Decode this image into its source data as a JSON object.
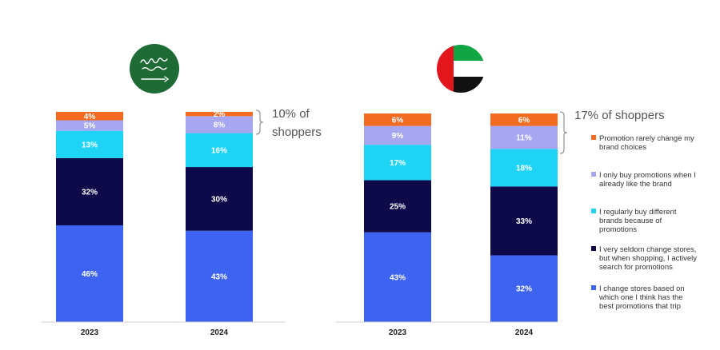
{
  "chart_data": [
    {
      "type": "bar",
      "stacked": true,
      "region": "Saudi Arabia",
      "flag": "saudi-flag",
      "categories": [
        "2023",
        "2024"
      ],
      "series": [
        {
          "name": "I change stores based on which one I think has the best promotions that trip",
          "color": "#3D63F0",
          "values": [
            46,
            43
          ],
          "labels": [
            "46%",
            "43%"
          ]
        },
        {
          "name": "I very seldom change stores, but when shopping, I actively search for promotions",
          "color": "#0E0A4A",
          "values": [
            32,
            30
          ],
          "labels": [
            "32%",
            "30%"
          ]
        },
        {
          "name": "I regularly buy different brands because of promotions",
          "color": "#1FD3F5",
          "values": [
            13,
            16
          ],
          "labels": [
            "13%",
            "16%"
          ]
        },
        {
          "name": "I only buy promotions when I already like the brand",
          "color": "#A6A7F0",
          "values": [
            5,
            8
          ],
          "labels": [
            "5%",
            "8%"
          ]
        },
        {
          "name": "Promotion rarely change my brand choices",
          "color": "#F26B21",
          "values": [
            4,
            2
          ],
          "labels": [
            "4%",
            "2%"
          ]
        }
      ],
      "annotation": [
        "10% of",
        "shoppers"
      ]
    },
    {
      "type": "bar",
      "stacked": true,
      "region": "UAE",
      "flag": "uae-flag",
      "categories": [
        "2023",
        "2024"
      ],
      "series": [
        {
          "name": "I change stores based on which one I think has the best promotions that trip",
          "color": "#3D63F0",
          "values": [
            43,
            32
          ],
          "labels": [
            "43%",
            "32%"
          ]
        },
        {
          "name": "I very seldom change stores, but when shopping, I actively search for promotions",
          "color": "#0E0A4A",
          "values": [
            25,
            33
          ],
          "labels": [
            "25%",
            "33%"
          ]
        },
        {
          "name": "I regularly buy different brands because of promotions",
          "color": "#1FD3F5",
          "values": [
            17,
            18
          ],
          "labels": [
            "17%",
            "18%"
          ]
        },
        {
          "name": "I only buy promotions when I already like the brand",
          "color": "#A6A7F0",
          "values": [
            9,
            11
          ],
          "labels": [
            "9%",
            "11%"
          ]
        },
        {
          "name": "Promotion rarely change my brand choices",
          "color": "#F26B21",
          "values": [
            6,
            6
          ],
          "labels": [
            "6%",
            "6%"
          ]
        }
      ],
      "annotation": [
        "17% of shoppers"
      ]
    }
  ],
  "legend": [
    {
      "lines": [
        "Promotion rarely change my",
        "brand choices"
      ],
      "color": "#F26B21"
    },
    {
      "lines": [
        "I only buy promotions when I",
        "already like the brand"
      ],
      "color": "#A6A7F0"
    },
    {
      "lines": [
        "I regularly buy different",
        "brands because of",
        "promotions"
      ],
      "color": "#1FD3F5"
    },
    {
      "lines": [
        "I very seldom change stores,",
        "but when shopping, I actively",
        "search for promotions"
      ],
      "color": "#0E0A4A"
    },
    {
      "lines": [
        "I change stores based on",
        "which one I think has the",
        "best promotions that trip"
      ],
      "color": "#3D63F0"
    }
  ],
  "colors": {
    "saudi_green": "#1E6B36",
    "uae_red": "#E3161E",
    "uae_green": "#12A544",
    "uae_black": "#111111"
  }
}
